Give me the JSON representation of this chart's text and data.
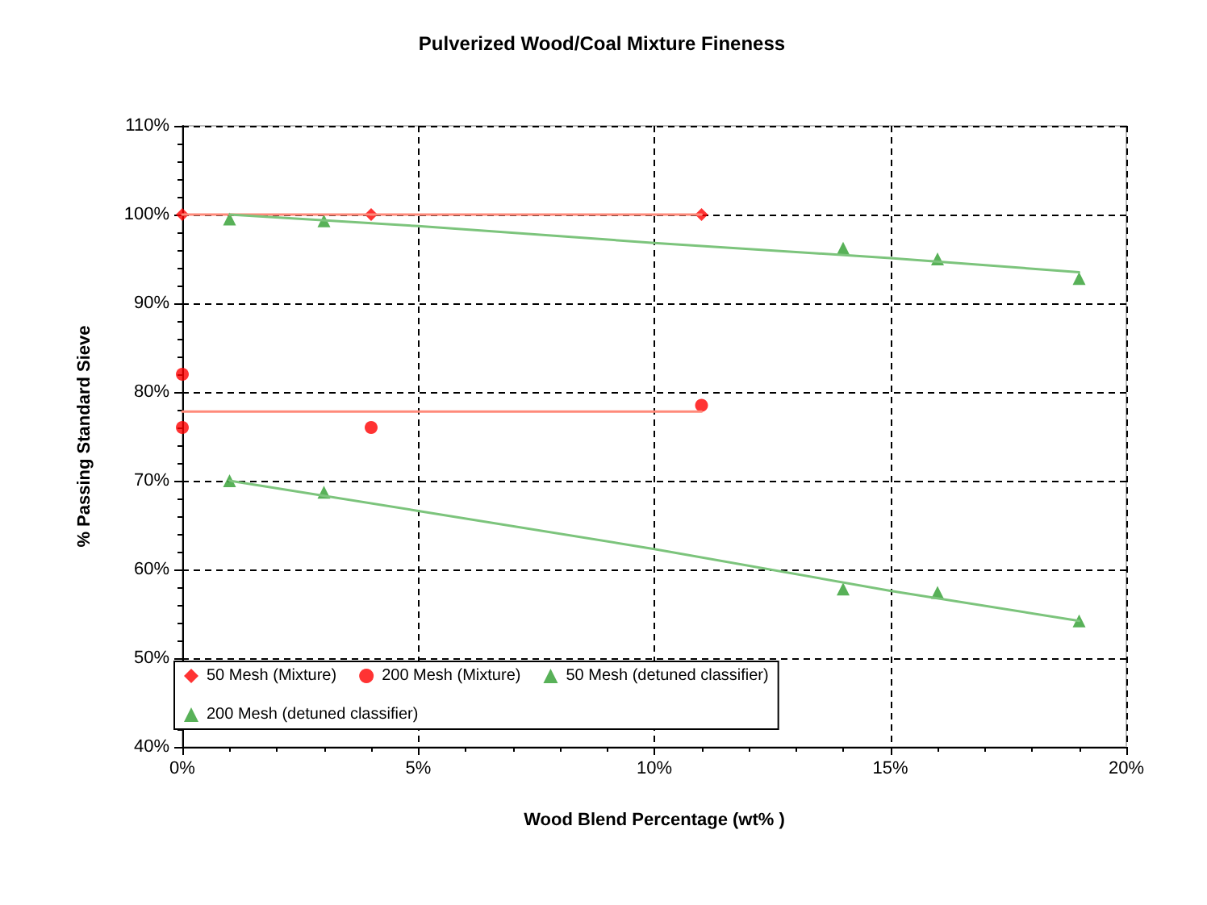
{
  "chart_data": {
    "type": "scatter",
    "title": "Pulverized Wood/Coal Mixture Fineness",
    "xlabel": "Wood Blend Percentage (wt% )",
    "ylabel": "% Passing Standard Sieve",
    "xlim": [
      0,
      20
    ],
    "xticks": [
      {
        "value": 0,
        "label": "0%"
      },
      {
        "value": 5,
        "label": "5%"
      },
      {
        "value": 10,
        "label": "10%"
      },
      {
        "value": 15,
        "label": "15%"
      },
      {
        "value": 20,
        "label": "20%"
      }
    ],
    "ylim": [
      40,
      110
    ],
    "yticks": [
      {
        "value": 40,
        "label": "40%"
      },
      {
        "value": 50,
        "label": "50%"
      },
      {
        "value": 60,
        "label": "60%"
      },
      {
        "value": 70,
        "label": "70%"
      },
      {
        "value": 80,
        "label": "80%"
      },
      {
        "value": 90,
        "label": "90%"
      },
      {
        "value": 100,
        "label": "100%"
      },
      {
        "value": 110,
        "label": "110%"
      }
    ],
    "grid": true,
    "legend": "bottom left",
    "series": [
      {
        "name": "50 Mesh (Mixture)",
        "marker": "diamond",
        "color": "#ff0000",
        "x": [
          0,
          4,
          11
        ],
        "values": [
          100,
          100,
          100
        ]
      },
      {
        "name": "200 Mesh (Mixture)",
        "marker": "circle",
        "color": "#ff0000",
        "x": [
          0,
          0,
          4,
          11
        ],
        "values": [
          82,
          76,
          76,
          78.5
        ]
      },
      {
        "name": "50 Mesh (detuned classifier)",
        "marker": "triangle",
        "color": "#2e9e2e",
        "x": [
          1,
          3,
          14,
          16,
          19
        ],
        "values": [
          99.5,
          99.3,
          96.2,
          95,
          92.8
        ]
      },
      {
        "name": "200 Mesh (detuned classifier)",
        "marker": "triangle",
        "color": "#2e9e2e",
        "x": [
          1,
          3,
          14,
          16,
          19
        ],
        "values": [
          70,
          68.7,
          57.8,
          57.4,
          54.2
        ]
      },
      {
        "type": "line",
        "marker": "none",
        "line_style": "solid",
        "color": "#ff8a7a",
        "x": [
          0,
          11
        ],
        "values": [
          100,
          100
        ]
      },
      {
        "type": "line",
        "marker": "none",
        "line_style": "solid",
        "color": "#ff8a7a",
        "x": [
          0,
          11
        ],
        "values": [
          77.8,
          77.8
        ]
      },
      {
        "type": "line",
        "marker": "none",
        "line_style": "solid",
        "color": "#7cc47c",
        "x": [
          1,
          5,
          10,
          15,
          19
        ],
        "values": [
          100,
          98.7,
          96.8,
          95.1,
          93.5
        ]
      },
      {
        "type": "line",
        "marker": "none",
        "line_style": "solid",
        "color": "#7cc47c",
        "x": [
          1,
          5,
          10,
          15,
          19
        ],
        "values": [
          70,
          66.6,
          62.3,
          57.6,
          54.2
        ]
      }
    ]
  }
}
